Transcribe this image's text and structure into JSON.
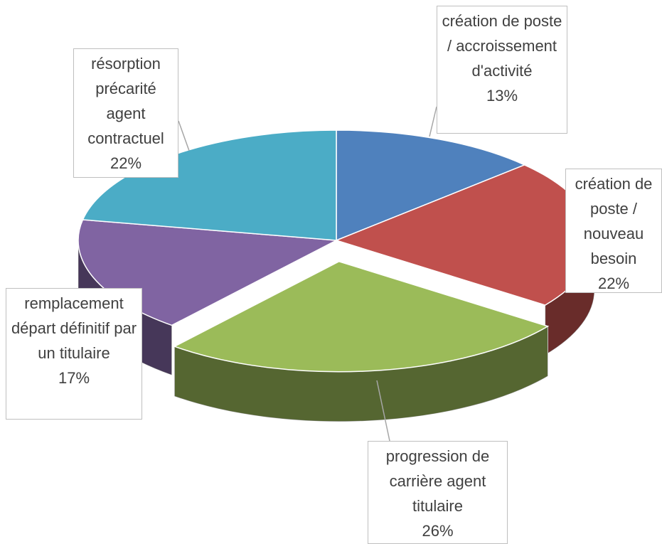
{
  "chart_data": {
    "type": "pie",
    "categories": [
      "création de poste / accroissement d'activité",
      "création de poste / nouveau besoin",
      "progression de carrière agent titulaire",
      "remplacement départ définitif par un titulaire",
      "résorption précarité agent contractuel"
    ],
    "values": [
      13,
      22,
      26,
      17,
      22
    ],
    "value_labels": [
      "13%",
      "22%",
      "26%",
      "17%",
      "22%"
    ],
    "colors": [
      "#4f81bd",
      "#c0504d",
      "#9bbb59",
      "#8064a2",
      "#4bacc6"
    ]
  }
}
